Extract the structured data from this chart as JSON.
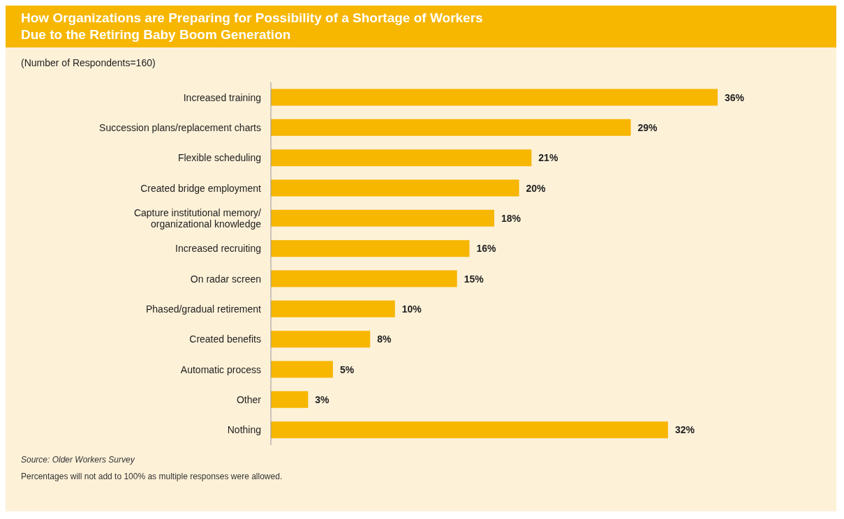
{
  "chart_data": {
    "type": "bar",
    "orientation": "horizontal",
    "title": "How Organizations are Preparing for Possibility of a Shortage of Workers\nDue to the Retiring Baby Boom Generation",
    "subtitle": "(Number of Respondents=160)",
    "categories": [
      "Increased training",
      "Succession plans/replacement charts",
      "Flexible scheduling",
      "Created bridge employment",
      "Capture institutional memory/\norganizational knowledge",
      "Increased recruiting",
      "On radar screen",
      "Phased/gradual retirement",
      "Created benefits",
      "Automatic process",
      "Other",
      "Nothing"
    ],
    "values": [
      36,
      29,
      21,
      20,
      18,
      16,
      15,
      10,
      8,
      5,
      3,
      32
    ],
    "color": "#f7b600",
    "data_labels": true,
    "value_labels": [
      "36%",
      "29%",
      "21%",
      "20%",
      "18%",
      "16%",
      "15%",
      "10%",
      "8%",
      "5%",
      "3%",
      "32%"
    ],
    "annotations": [
      "Source: Older Workers Survey",
      "Percentages will not add to 100% as multiple responses were allowed."
    ]
  }
}
